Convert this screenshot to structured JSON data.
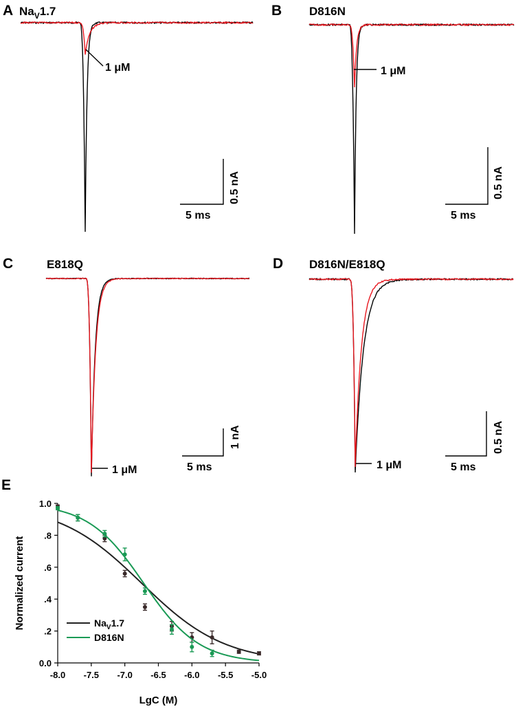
{
  "colors": {
    "control": "#000000",
    "toxin": "#e8171f",
    "nav17_fit": "#222222",
    "d816n_fit": "#1a9a55",
    "nav17_points": "#3a2a2a"
  },
  "panels": {
    "A": {
      "label": "A",
      "title": "NaV1.7",
      "title_main": "Na",
      "title_sub": "V",
      "title_rest": "1.7",
      "conc_label": "1 μM",
      "scale_x_label": "5 ms",
      "scale_y_label": "0.5 nA"
    },
    "B": {
      "label": "B",
      "title": "D816N",
      "conc_label": "1 μM",
      "scale_x_label": "5 ms",
      "scale_y_label": "0.5 nA"
    },
    "C": {
      "label": "C",
      "title": "E818Q",
      "conc_label": "1 μM",
      "scale_x_label": "5 ms",
      "scale_y_label": "1 nA"
    },
    "D": {
      "label": "D",
      "title": "D816N/E818Q",
      "conc_label": "1 μM",
      "scale_x_label": "5 ms",
      "scale_y_label": "0.5 nA"
    },
    "E": {
      "label": "E"
    }
  },
  "chart_data": [
    {
      "panel": "A",
      "type": "line",
      "xlabel": "",
      "ylabel": "",
      "series": [
        {
          "role": "control",
          "peak_fraction_of_control": 1.0
        },
        {
          "role": "1 μM",
          "peak_fraction_of_control": 0.15
        }
      ]
    },
    {
      "panel": "B",
      "type": "line",
      "xlabel": "",
      "ylabel": "",
      "series": [
        {
          "role": "control",
          "peak_fraction_of_control": 1.0
        },
        {
          "role": "1 μM",
          "peak_fraction_of_control": 0.3
        }
      ]
    },
    {
      "panel": "C",
      "type": "line",
      "xlabel": "",
      "ylabel": "",
      "series": [
        {
          "role": "control",
          "peak_fraction_of_control": 1.0
        },
        {
          "role": "1 μM",
          "peak_fraction_of_control": 0.98
        }
      ]
    },
    {
      "panel": "D",
      "type": "line",
      "xlabel": "",
      "ylabel": "",
      "series": [
        {
          "role": "control",
          "peak_fraction_of_control": 1.0
        },
        {
          "role": "1 μM",
          "peak_fraction_of_control": 0.97
        }
      ]
    },
    {
      "panel": "E",
      "type": "scatter",
      "xlabel": "LgC (M)",
      "ylabel": "Normalized current",
      "xlim": [
        -8.0,
        -5.0
      ],
      "ylim": [
        0.0,
        1.0
      ],
      "xticks": [
        "-8.0",
        "-7.5",
        "-7.0",
        "-6.5",
        "-6.0",
        "-5.5",
        "-5.0"
      ],
      "yticks": [
        "0.0",
        ".2",
        ".4",
        ".6",
        ".8",
        "1.0"
      ],
      "legend_position": "bottom-left",
      "series": [
        {
          "name": "NaV1.7",
          "name_main": "Na",
          "name_sub": "V",
          "name_rest": "1.7",
          "color_key": "nav17_fit",
          "x": [
            -8.0,
            -7.7,
            -7.3,
            -7.0,
            -6.7,
            -6.3,
            -6.0,
            -5.7,
            -5.3,
            -5.0
          ],
          "y": [
            0.98,
            0.91,
            0.78,
            0.56,
            0.35,
            0.23,
            0.16,
            0.16,
            0.07,
            0.06
          ],
          "err": [
            0.01,
            0.02,
            0.02,
            0.02,
            0.02,
            0.03,
            0.03,
            0.04,
            0.01,
            0.01
          ],
          "fit": {
            "ic50": -6.75,
            "slope": 0.7
          }
        },
        {
          "name": "D816N",
          "color_key": "d816n_fit",
          "x": [
            -8.0,
            -7.7,
            -7.3,
            -7.0,
            -6.7,
            -6.3,
            -6.0,
            -5.7
          ],
          "y": [
            0.97,
            0.91,
            0.81,
            0.68,
            0.45,
            0.21,
            0.1,
            0.06
          ],
          "err": [
            0.01,
            0.02,
            0.02,
            0.04,
            0.02,
            0.03,
            0.03,
            0.02
          ],
          "fit": {
            "ic50": -6.72,
            "slope": 1.05
          }
        }
      ]
    }
  ]
}
